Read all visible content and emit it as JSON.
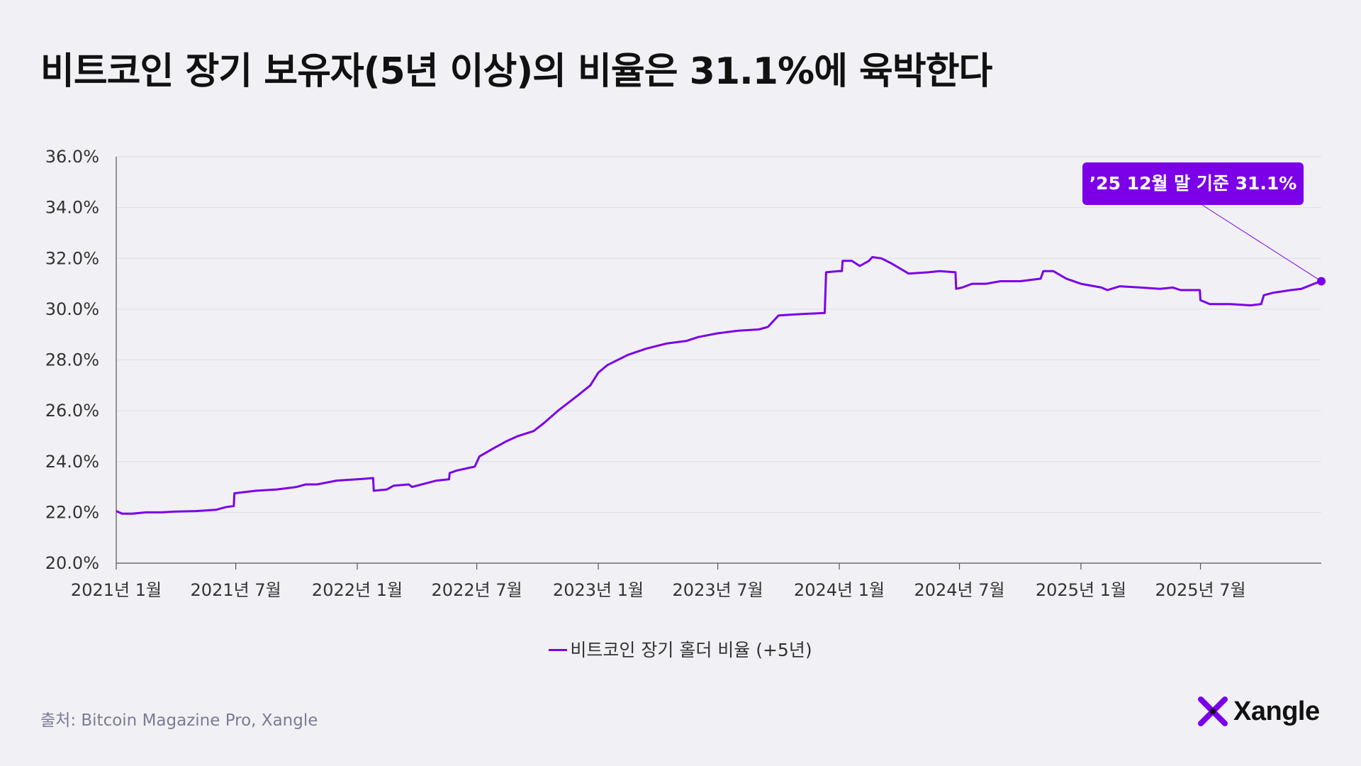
{
  "title": "비트코인 장기 보유자(5년 이상)의 비율은 31.1%에 육박한다",
  "source": "출처: Bitcoin Magazine Pro, Xangle",
  "brand": {
    "name": "Xangle",
    "logo_icon": "xangle-x-logo-icon"
  },
  "colors": {
    "accent": "#7b00e8",
    "background": "#f1f1f5",
    "grid": "#dcdce4"
  },
  "callout": {
    "text": "’25 12월 말 기준 31.1%"
  },
  "chart_data": {
    "type": "line",
    "title": "비트코인 장기 보유자(5년 이상)의 비율은 31.1%에 육박한다",
    "xlabel": "",
    "ylabel": "",
    "ylim": [
      20.0,
      36.0
    ],
    "yticks": [
      "20.0%",
      "22.0%",
      "24.0%",
      "26.0%",
      "28.0%",
      "30.0%",
      "32.0%",
      "34.0%",
      "36.0%"
    ],
    "xlim": [
      "2021-01-01",
      "2025-12-31"
    ],
    "xticks": [
      {
        "date": "2021-01-01",
        "label": "2021년 1월"
      },
      {
        "date": "2021-07-01",
        "label": "2021년 7월"
      },
      {
        "date": "2022-01-01",
        "label": "2022년 1월"
      },
      {
        "date": "2022-07-01",
        "label": "2022년 7월"
      },
      {
        "date": "2023-01-01",
        "label": "2023년 1월"
      },
      {
        "date": "2023-07-01",
        "label": "2023년 7월"
      },
      {
        "date": "2024-01-01",
        "label": "2024년 1월"
      },
      {
        "date": "2024-07-01",
        "label": "2024년 7월"
      },
      {
        "date": "2025-01-01",
        "label": "2025년 1월"
      },
      {
        "date": "2025-07-01",
        "label": "2025년 7월"
      }
    ],
    "grid": true,
    "legend": "bottom-center",
    "series": [
      {
        "name": "비트코인 장기 홀더 비율 (+5년)",
        "color": "#7b00e8",
        "points": [
          [
            "2021-01-01",
            22.05
          ],
          [
            "2021-01-10",
            21.95
          ],
          [
            "2021-01-25",
            21.95
          ],
          [
            "2021-02-15",
            22.0
          ],
          [
            "2021-03-10",
            22.0
          ],
          [
            "2021-04-01",
            22.03
          ],
          [
            "2021-05-01",
            22.05
          ],
          [
            "2021-06-01",
            22.1
          ],
          [
            "2021-06-15",
            22.2
          ],
          [
            "2021-06-28",
            22.25
          ],
          [
            "2021-06-29",
            22.75
          ],
          [
            "2021-08-01",
            22.85
          ],
          [
            "2021-09-01",
            22.9
          ],
          [
            "2021-10-01",
            23.0
          ],
          [
            "2021-10-15",
            23.1
          ],
          [
            "2021-11-01",
            23.1
          ],
          [
            "2021-12-01",
            23.25
          ],
          [
            "2022-01-01",
            23.3
          ],
          [
            "2022-01-25",
            23.35
          ],
          [
            "2022-01-26",
            22.85
          ],
          [
            "2022-02-15",
            22.9
          ],
          [
            "2022-02-25",
            23.05
          ],
          [
            "2022-03-20",
            23.1
          ],
          [
            "2022-03-25",
            23.0
          ],
          [
            "2022-05-01",
            23.25
          ],
          [
            "2022-05-20",
            23.3
          ],
          [
            "2022-05-21",
            23.55
          ],
          [
            "2022-06-01",
            23.65
          ],
          [
            "2022-06-28",
            23.8
          ],
          [
            "2022-07-05",
            24.2
          ],
          [
            "2022-07-25",
            24.5
          ],
          [
            "2022-08-15",
            24.8
          ],
          [
            "2022-09-01",
            25.0
          ],
          [
            "2022-09-25",
            25.2
          ],
          [
            "2022-10-10",
            25.5
          ],
          [
            "2022-11-01",
            26.0
          ],
          [
            "2022-12-01",
            26.6
          ],
          [
            "2022-12-20",
            27.0
          ],
          [
            "2023-01-01",
            27.5
          ],
          [
            "2023-01-15",
            27.8
          ],
          [
            "2023-02-15",
            28.2
          ],
          [
            "2023-03-15",
            28.45
          ],
          [
            "2023-04-15",
            28.65
          ],
          [
            "2023-05-15",
            28.75
          ],
          [
            "2023-06-01",
            28.9
          ],
          [
            "2023-07-01",
            29.05
          ],
          [
            "2023-08-01",
            29.15
          ],
          [
            "2023-09-01",
            29.2
          ],
          [
            "2023-09-15",
            29.3
          ],
          [
            "2023-10-01",
            29.75
          ],
          [
            "2023-11-01",
            29.8
          ],
          [
            "2023-12-10",
            29.85
          ],
          [
            "2023-12-12",
            31.45
          ],
          [
            "2023-12-31",
            31.5
          ],
          [
            "2024-01-05",
            31.5
          ],
          [
            "2024-01-06",
            31.9
          ],
          [
            "2024-01-20",
            31.9
          ],
          [
            "2024-02-01",
            31.7
          ],
          [
            "2024-02-15",
            31.9
          ],
          [
            "2024-02-20",
            32.05
          ],
          [
            "2024-03-05",
            32.0
          ],
          [
            "2024-03-20",
            31.8
          ],
          [
            "2024-04-15",
            31.4
          ],
          [
            "2024-05-15",
            31.45
          ],
          [
            "2024-06-01",
            31.5
          ],
          [
            "2024-06-25",
            31.45
          ],
          [
            "2024-06-26",
            30.8
          ],
          [
            "2024-07-05",
            30.85
          ],
          [
            "2024-07-20",
            31.0
          ],
          [
            "2024-08-10",
            31.0
          ],
          [
            "2024-09-01",
            31.1
          ],
          [
            "2024-10-01",
            31.1
          ],
          [
            "2024-11-01",
            31.2
          ],
          [
            "2024-11-05",
            31.5
          ],
          [
            "2024-11-20",
            31.5
          ],
          [
            "2024-12-10",
            31.2
          ],
          [
            "2025-01-01",
            31.0
          ],
          [
            "2025-02-01",
            30.85
          ],
          [
            "2025-02-10",
            30.75
          ],
          [
            "2025-03-01",
            30.9
          ],
          [
            "2025-04-01",
            30.85
          ],
          [
            "2025-05-01",
            30.8
          ],
          [
            "2025-05-20",
            30.85
          ],
          [
            "2025-06-01",
            30.75
          ],
          [
            "2025-06-30",
            30.75
          ],
          [
            "2025-07-01",
            30.35
          ],
          [
            "2025-07-15",
            30.2
          ],
          [
            "2025-08-15",
            30.2
          ],
          [
            "2025-09-15",
            30.15
          ],
          [
            "2025-10-01",
            30.2
          ],
          [
            "2025-10-05",
            30.55
          ],
          [
            "2025-10-20",
            30.65
          ],
          [
            "2025-11-15",
            30.75
          ],
          [
            "2025-12-01",
            30.8
          ],
          [
            "2025-12-20",
            31.0
          ],
          [
            "2025-12-31",
            31.1
          ]
        ]
      }
    ]
  }
}
